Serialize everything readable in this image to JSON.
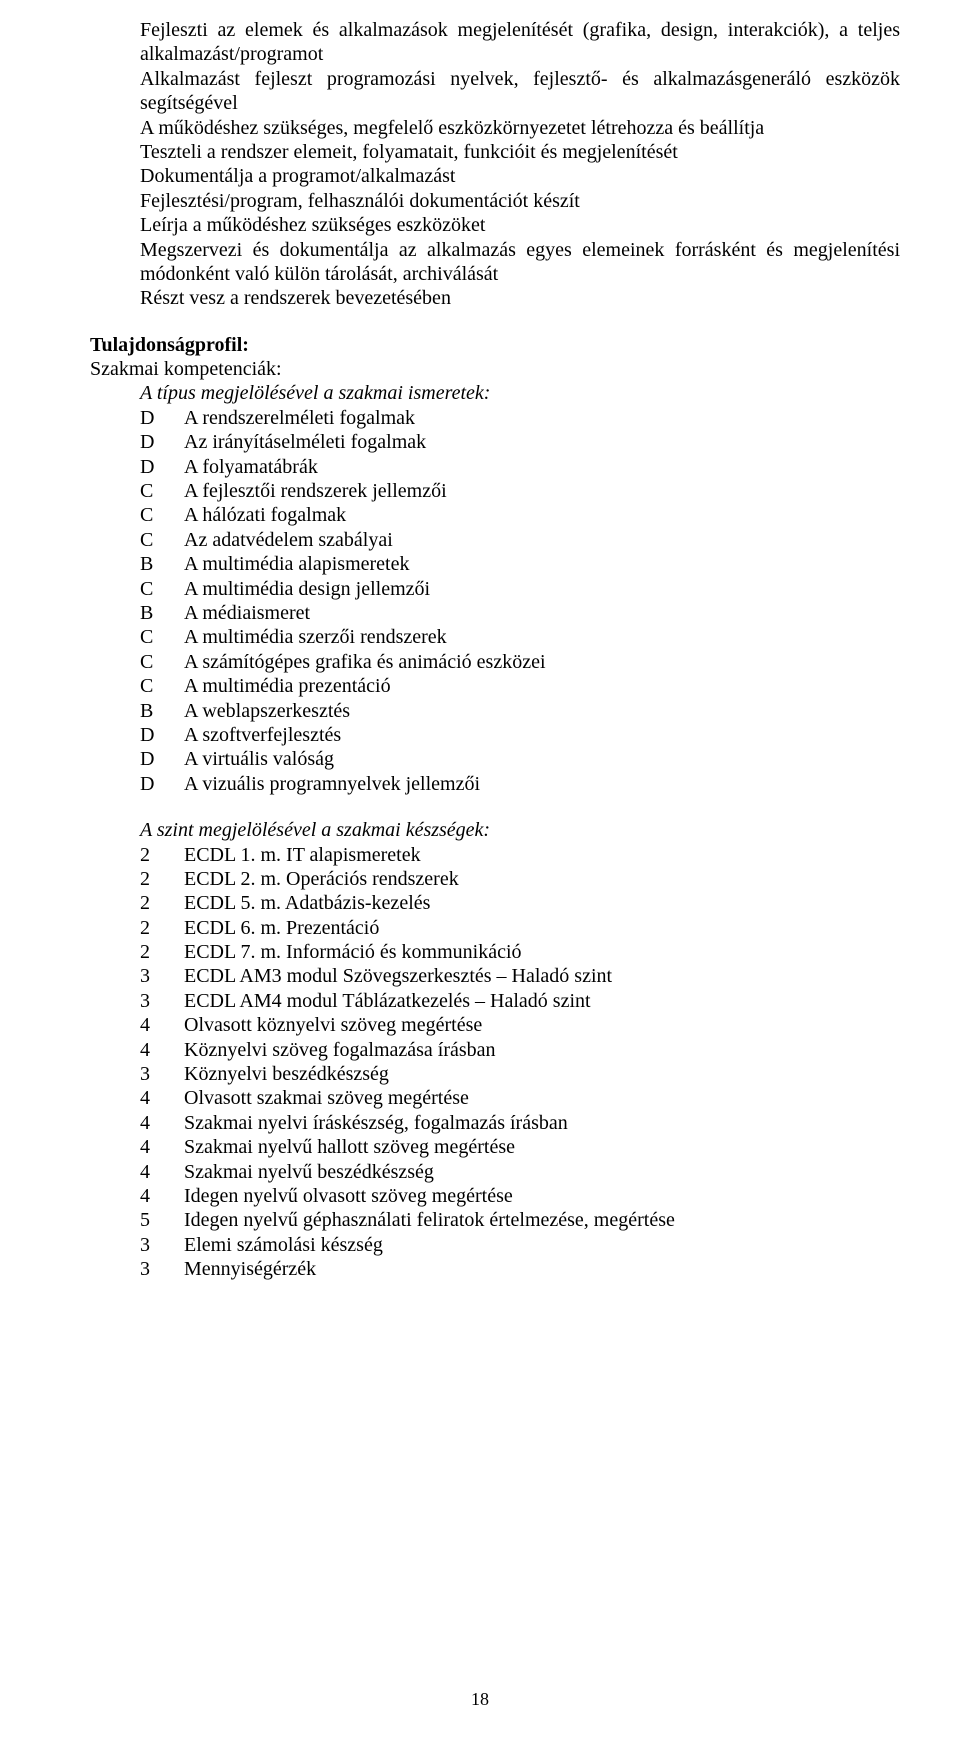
{
  "intro_paragraphs": [
    "Fejleszti az elemek és alkalmazások megjelenítését (grafika, design, interakciók), a teljes alkalmazást/programot",
    "Alkalmazást fejleszt programozási nyelvek, fejlesztő- és alkalmazásgeneráló eszközök segítségével",
    "A működéshez szükséges, megfelelő eszközkörnyezetet létrehozza és beállítja",
    "Teszteli a rendszer elemeit, folyamatait, funkcióit és megjelenítését",
    "Dokumentálja a programot/alkalmazást",
    "Fejlesztési/program, felhasználói dokumentációt készít",
    "Leírja a működéshez szükséges eszközöket",
    "Megszervezi és dokumentálja az alkalmazás egyes elemeinek forrásként és megjelenítési módonként való külön tárolását, archiválását",
    "Részt vesz a rendszerek bevezetésében"
  ],
  "headings": {
    "profile": "Tulajdonságprofil:",
    "competencies": "Szakmai kompetenciák:",
    "knowledge_header": "A típus megjelölésével a szakmai ismeretek:",
    "skills_header": "A szint megjelölésével a szakmai készségek:"
  },
  "knowledge_items": [
    {
      "level": "D",
      "label": "A rendszerelméleti fogalmak"
    },
    {
      "level": "D",
      "label": "Az irányításelméleti fogalmak"
    },
    {
      "level": "D",
      "label": "A folyamatábrák"
    },
    {
      "level": "C",
      "label": "A fejlesztői rendszerek jellemzői"
    },
    {
      "level": "C",
      "label": "A hálózati fogalmak"
    },
    {
      "level": "C",
      "label": "Az adatvédelem szabályai"
    },
    {
      "level": "B",
      "label": "A multimédia alapismeretek"
    },
    {
      "level": "C",
      "label": "A multimédia design jellemzői"
    },
    {
      "level": "B",
      "label": "A médiaismeret"
    },
    {
      "level": "C",
      "label": "A multimédia szerzői rendszerek"
    },
    {
      "level": "C",
      "label": "A számítógépes grafika és animáció eszközei"
    },
    {
      "level": "C",
      "label": "A multimédia prezentáció"
    },
    {
      "level": "B",
      "label": "A weblapszerkesztés"
    },
    {
      "level": "D",
      "label": "A szoftverfejlesztés"
    },
    {
      "level": "D",
      "label": "A virtuális valóság"
    },
    {
      "level": "D",
      "label": "A vizuális programnyelvek jellemzői"
    }
  ],
  "skill_items": [
    {
      "level": "2",
      "label": "ECDL 1. m. IT alapismeretek"
    },
    {
      "level": "2",
      "label": "ECDL 2. m. Operációs rendszerek"
    },
    {
      "level": "2",
      "label": "ECDL 5. m. Adatbázis-kezelés"
    },
    {
      "level": "2",
      "label": "ECDL 6. m. Prezentáció"
    },
    {
      "level": "2",
      "label": "ECDL 7. m. Információ és kommunikáció"
    },
    {
      "level": "3",
      "label": "ECDL AM3 modul Szövegszerkesztés – Haladó szint"
    },
    {
      "level": "3",
      "label": "ECDL AM4 modul Táblázatkezelés – Haladó szint"
    },
    {
      "level": "4",
      "label": "Olvasott köznyelvi szöveg megértése"
    },
    {
      "level": "4",
      "label": "Köznyelvi szöveg fogalmazása írásban"
    },
    {
      "level": "3",
      "label": "Köznyelvi beszédkészség"
    },
    {
      "level": "4",
      "label": "Olvasott szakmai szöveg megértése"
    },
    {
      "level": "4",
      "label": "Szakmai nyelvi íráskészség, fogalmazás írásban"
    },
    {
      "level": "4",
      "label": "Szakmai nyelvű hallott szöveg megértése"
    },
    {
      "level": "4",
      "label": "Szakmai nyelvű beszédkészség"
    },
    {
      "level": "4",
      "label": "Idegen nyelvű olvasott szöveg megértése"
    },
    {
      "level": "5",
      "label": "Idegen nyelvű géphasználati feliratok értelmezése, megértése"
    },
    {
      "level": "3",
      "label": "Elemi számolási készség"
    },
    {
      "level": "3",
      "label": "Mennyiségérzék"
    }
  ],
  "page_number": "18"
}
